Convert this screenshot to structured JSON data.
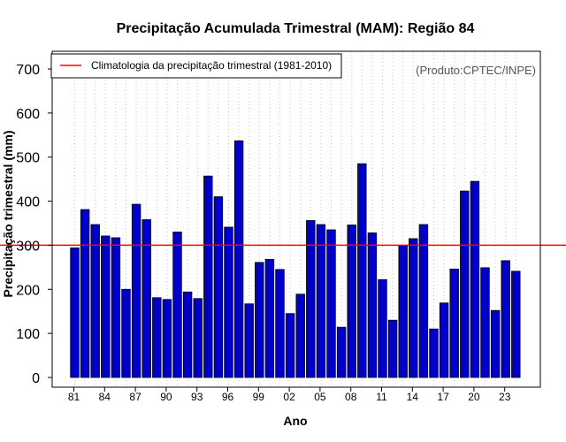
{
  "chart_data": {
    "type": "bar",
    "title": "Precipitação Acumulada Trimestral (MAM): Região 84",
    "xlabel": "Ano",
    "ylabel": "Precipitação trimestral (mm)",
    "ylim": [
      0,
      730
    ],
    "yticks": [
      0,
      100,
      200,
      300,
      400,
      500,
      600,
      700
    ],
    "categories": [
      "81",
      "82",
      "83",
      "84",
      "85",
      "86",
      "87",
      "88",
      "89",
      "90",
      "91",
      "92",
      "93",
      "94",
      "95",
      "96",
      "97",
      "98",
      "99",
      "00",
      "01",
      "02",
      "03",
      "04",
      "05",
      "06",
      "07",
      "08",
      "09",
      "10",
      "11",
      "12",
      "13",
      "14",
      "15",
      "16",
      "17",
      "18",
      "19",
      "20",
      "21",
      "22",
      "23",
      "24"
    ],
    "xtick_labels": [
      "81",
      "84",
      "87",
      "90",
      "93",
      "96",
      "99",
      "02",
      "05",
      "08",
      "11",
      "14",
      "17",
      "20",
      "23"
    ],
    "values": [
      294,
      381,
      347,
      321,
      317,
      200,
      393,
      358,
      181,
      177,
      330,
      194,
      179,
      457,
      410,
      341,
      537,
      167,
      261,
      268,
      245,
      145,
      189,
      356,
      347,
      335,
      114,
      346,
      485,
      328,
      222,
      130,
      300,
      315,
      347,
      110,
      169,
      246,
      423,
      445,
      249,
      152,
      265,
      241
    ],
    "bar_color": "#0000cd",
    "bar_edge_color": "#000000",
    "reference_line": {
      "label": "Climatologia da precipitação trimestral (1981-2010)",
      "value": 300,
      "color": "#ff0000"
    },
    "legend_position": "top-left",
    "grid": "vertical-dotted",
    "credit": "(Produto:CPTEC/INPE)"
  }
}
